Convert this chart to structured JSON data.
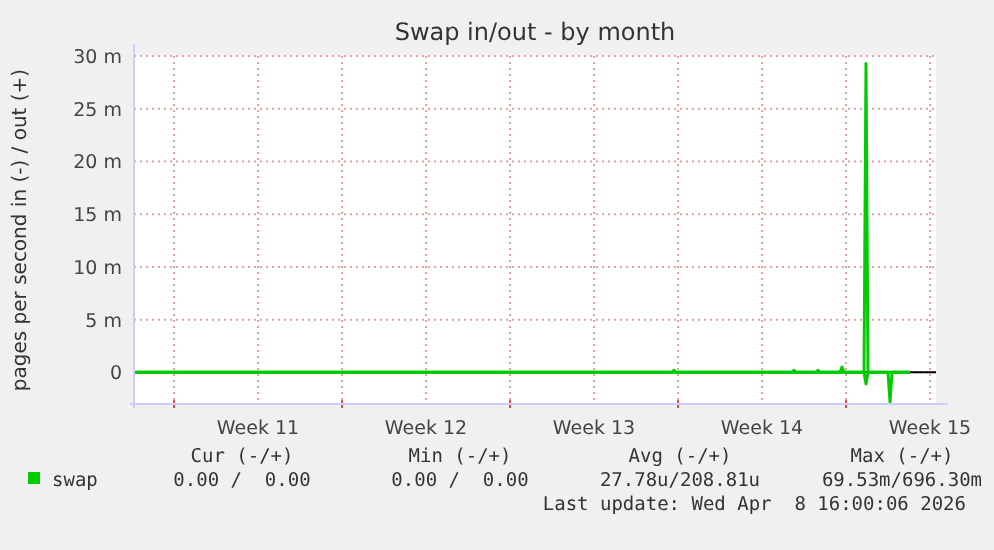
{
  "chart_data": {
    "type": "line",
    "title": "Swap in/out - by month",
    "ylabel": "pages per second in (-) / out (+)",
    "xlim": [
      "2026-03-07T08:00",
      "2026-04-09T18:00"
    ],
    "xticks": [
      {
        "value": "2026-03-09T00:00",
        "label": null
      },
      {
        "value": "2026-03-12T12:00",
        "label": "Week 11"
      },
      {
        "value": "2026-03-16T00:00",
        "label": null
      },
      {
        "value": "2026-03-19T12:00",
        "label": "Week 12"
      },
      {
        "value": "2026-03-23T00:00",
        "label": null
      },
      {
        "value": "2026-03-26T12:00",
        "label": "Week 13"
      },
      {
        "value": "2026-03-30T00:00",
        "label": null
      },
      {
        "value": "2026-04-02T12:00",
        "label": "Week 14"
      },
      {
        "value": "2026-04-06T00:00",
        "label": null
      },
      {
        "value": "2026-04-09T12:00",
        "label": "Week 15"
      }
    ],
    "ylim": [
      -3,
      30
    ],
    "yticks": [
      {
        "value": 0,
        "label": "0"
      },
      {
        "value": 5,
        "label": "5 m"
      },
      {
        "value": 10,
        "label": "10 m"
      },
      {
        "value": 15,
        "label": "15 m"
      },
      {
        "value": 20,
        "label": "20 m"
      },
      {
        "value": 25,
        "label": "25 m"
      },
      {
        "value": 30,
        "label": "30 m"
      }
    ],
    "grid": true,
    "legend": "bottom",
    "ref_lines": [
      {
        "axis": "y",
        "value": 0,
        "color": "#000000"
      }
    ],
    "series": [
      {
        "name": "swap",
        "color": "#00cc00",
        "x": [
          "2026-03-07T08:00",
          "2026-03-29T18:00",
          "2026-03-29T20:00",
          "2026-03-29T22:00",
          "2026-04-03T18:00",
          "2026-04-03T20:00",
          "2026-04-03T22:00",
          "2026-04-04T18:00",
          "2026-04-04T20:00",
          "2026-04-04T22:00",
          "2026-04-05T18:00",
          "2026-04-05T20:00",
          "2026-04-05T22:00",
          "2026-04-06T18:00",
          "2026-04-06T20:00",
          "2026-04-06T22:00",
          "2026-04-08T16:00"
        ],
        "values": [
          0,
          0,
          0.2,
          0,
          0,
          0.2,
          0,
          0,
          0.2,
          0,
          0,
          0.5,
          0,
          0,
          29.3,
          0,
          0
        ]
      },
      {
        "color": "#00cc00",
        "x": [
          "2026-03-07T08:00",
          "2026-04-06T18:00",
          "2026-04-06T20:00",
          "2026-04-06T22:00",
          "2026-04-07T18:00",
          "2026-04-07T20:00",
          "2026-04-07T22:00",
          "2026-04-08T16:00"
        ],
        "values": [
          0,
          0,
          -1.1,
          0,
          0,
          -2.8,
          0,
          0
        ]
      }
    ],
    "annotations": [
      "Cur (-/+)",
      "Min (-/+)",
      "Avg (-/+)",
      "Max (-/+)",
      "0.00 /  0.00",
      "0.00 /  0.00",
      "27.78u/208.81u",
      "69.53m/696.30m",
      "Last update: Wed Apr  8 16:00:06 2026"
    ]
  }
}
